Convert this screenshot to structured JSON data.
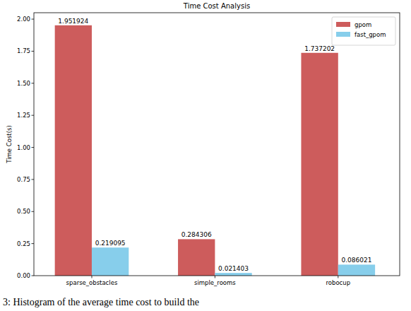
{
  "chart_data": {
    "type": "bar",
    "title": "Time Cost Analysis",
    "caption": "3: Histogram of the average time cost to build the",
    "y_label": "Time Cost(s)",
    "categories": [
      "sparse_obstacles",
      "simple_rooms",
      "robocup"
    ],
    "series": [
      {
        "name": "gpom",
        "color": "#cd5c5c",
        "values": [
          1.951924,
          0.284306,
          1.737202
        ]
      },
      {
        "name": "fast_gpom",
        "color": "#87ceeb",
        "values": [
          0.219095,
          0.021403,
          0.086021
        ]
      }
    ],
    "ylim": [
      0,
      2.05
    ],
    "yticks": [
      {
        "value": 0,
        "label": "0.00"
      },
      0.25,
      {
        "value": 0.5,
        "label": "0.50"
      },
      0.75,
      {
        "value": 1,
        "label": "1.00"
      },
      1.25,
      {
        "value": 1.5,
        "label": "1.50"
      },
      1.75,
      {
        "value": 2,
        "label": "2.00"
      }
    ],
    "grid": false,
    "legend": "upper right",
    "data_labels": true
  }
}
